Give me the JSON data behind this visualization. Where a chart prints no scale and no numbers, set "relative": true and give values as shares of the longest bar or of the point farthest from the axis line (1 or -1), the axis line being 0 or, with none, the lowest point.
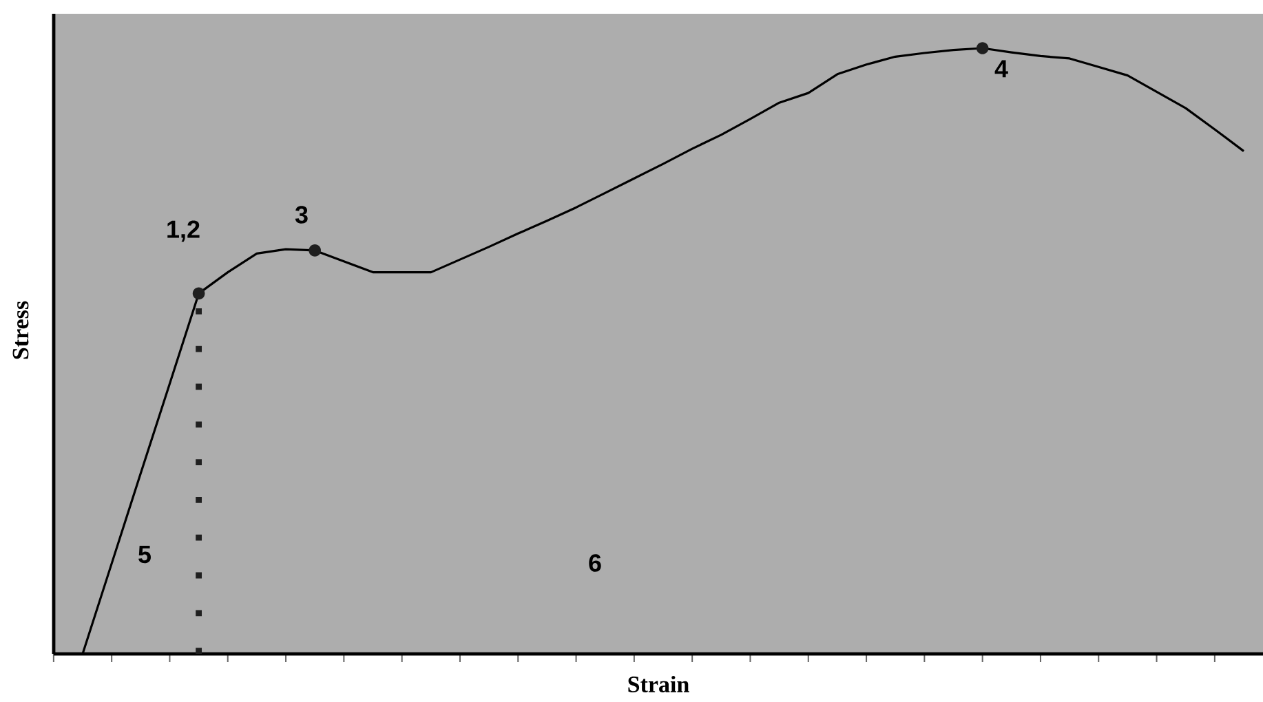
{
  "chart_data": {
    "type": "line",
    "relative": true,
    "xlabel": "Strain",
    "ylabel": "Stress",
    "categories": [
      null,
      null,
      null,
      null,
      null,
      null,
      null,
      null,
      null,
      null,
      null,
      null,
      null,
      null,
      null,
      null,
      null,
      null,
      null,
      null,
      null,
      null,
      null,
      null,
      null,
      null,
      null,
      null,
      null,
      null,
      null,
      null,
      null,
      null,
      null,
      null,
      null,
      null,
      null,
      null,
      null
    ],
    "series": [
      {
        "color": "#000000",
        "values": [
          0,
          0.149,
          0.298,
          0.446,
          0.595,
          0.63,
          0.661,
          0.668,
          0.666,
          0.648,
          0.63,
          0.63,
          0.63,
          0.651,
          0.672,
          0.694,
          0.715,
          0.737,
          0.761,
          0.785,
          0.809,
          0.834,
          0.857,
          0.883,
          0.91,
          0.926,
          0.957,
          0.973,
          0.986,
          0.992,
          0.997,
          1,
          0.993,
          0.987,
          0.983,
          0.969,
          0.955,
          0.928,
          0.901,
          0.866,
          0.83
        ]
      }
    ],
    "annotations": [
      "1,2",
      "3",
      "4",
      "5",
      "6"
    ]
  }
}
